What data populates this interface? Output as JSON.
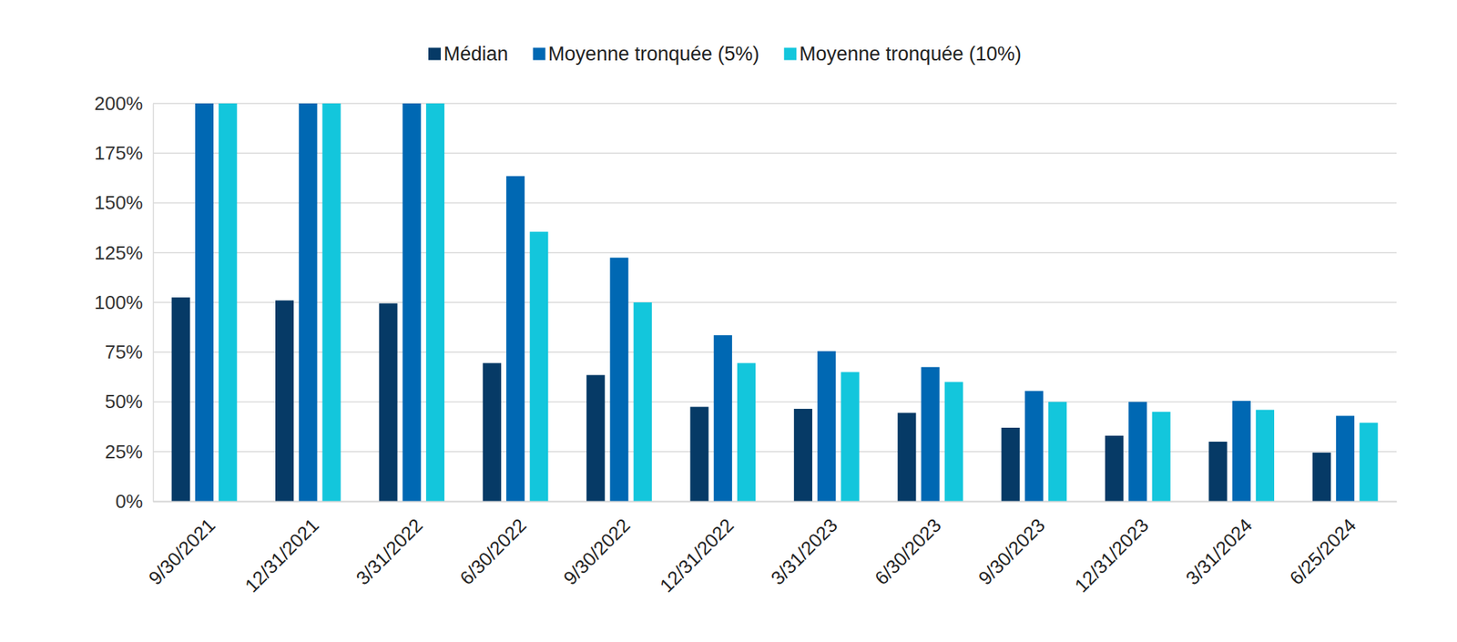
{
  "chart_data": {
    "type": "bar",
    "categories": [
      "9/30/2021",
      "12/31/2021",
      "3/31/2022",
      "6/30/2022",
      "9/30/2022",
      "12/31/2022",
      "3/31/2023",
      "6/30/2023",
      "9/30/2023",
      "12/31/2023",
      "3/31/2024",
      "6/25/2024"
    ],
    "series": [
      {
        "name": "Médian",
        "color": "#063a66",
        "values": [
          102.5,
          101,
          99.5,
          69.5,
          63.5,
          47.5,
          46.5,
          44.5,
          37,
          33,
          30,
          24.5
        ]
      },
      {
        "name": "Moyenne tronquée (5%)",
        "color": "#0068b3",
        "values": [
          200,
          200,
          200,
          163.5,
          122.5,
          83.5,
          75.5,
          67.5,
          55.5,
          50,
          50.5,
          43
        ]
      },
      {
        "name": "Moyenne tronquée (10%)",
        "color": "#13c6dc",
        "values": [
          200,
          200,
          200,
          135.5,
          100,
          69.5,
          65,
          60,
          50,
          45,
          46,
          39.5
        ]
      }
    ],
    "ylim": [
      0,
      200
    ],
    "yticks": [
      {
        "value": 0,
        "label": "0%"
      },
      {
        "value": 25,
        "label": "25%"
      },
      {
        "value": 50,
        "label": "50%"
      },
      {
        "value": 75,
        "label": "75%"
      },
      {
        "value": 100,
        "label": "100%"
      },
      {
        "value": 125,
        "label": "125%"
      },
      {
        "value": 150,
        "label": "150%"
      },
      {
        "value": 175,
        "label": "175%"
      },
      {
        "value": 200,
        "label": "200%"
      }
    ],
    "grid": true,
    "legend": "top"
  }
}
